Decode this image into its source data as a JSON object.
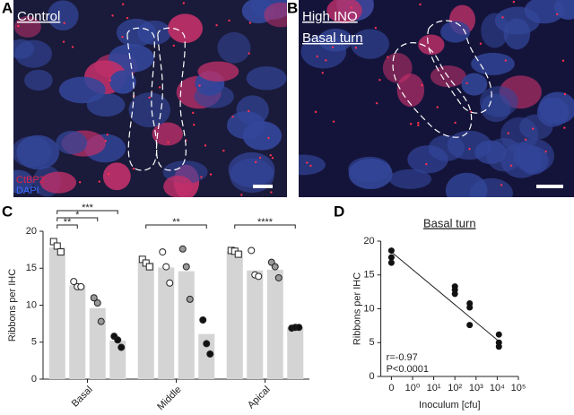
{
  "panels": {
    "A": {
      "letter": "A",
      "labels": [
        "Control"
      ],
      "stains": [
        "CtBP2",
        "DAPI"
      ]
    },
    "B": {
      "letter": "B",
      "labels": [
        "High INO",
        "Basal turn"
      ]
    }
  },
  "chart_data": [
    {
      "letter": "C",
      "type": "bar",
      "ylabel": "Ribbons per IHC",
      "categories": [
        "Basal",
        "Middle",
        "Apical"
      ],
      "ylim": [
        0,
        20
      ],
      "yticks": [
        0,
        5,
        10,
        15,
        20
      ],
      "bar_color": "#d4d4d4",
      "series": [
        {
          "marker": "square",
          "color": "#ffffff",
          "values": [
            17.8,
            15.8,
            17.3
          ],
          "points": [
            [
              18.6,
              18.0,
              17.2
            ],
            [
              16.2,
              15.7,
              15.2
            ],
            [
              17.4,
              17.3,
              16.9
            ]
          ]
        },
        {
          "marker": "circle",
          "color": "#ffffff",
          "values": [
            12.7,
            15.1,
            14.7
          ],
          "points": [
            [
              13.2,
              12.5,
              12.5
            ],
            [
              17.2,
              15.2,
              13.0
            ],
            [
              17.4,
              14.1,
              13.9
            ]
          ]
        },
        {
          "marker": "circle",
          "color": "#999999",
          "values": [
            9.6,
            14.6,
            14.8
          ],
          "points": [
            [
              11.0,
              10.3,
              7.8
            ],
            [
              17.6,
              15.2,
              10.8
            ],
            [
              15.8,
              15.2,
              13.7
            ]
          ]
        },
        {
          "marker": "circle",
          "color": "#111111",
          "values": [
            5.2,
            6.1,
            7.0
          ],
          "points": [
            [
              5.8,
              5.3,
              4.3
            ],
            [
              8.0,
              4.8,
              3.4
            ],
            [
              6.9,
              7.0,
              7.0
            ]
          ]
        }
      ],
      "significance": [
        {
          "category": 0,
          "from": 0,
          "to": 1,
          "label": "**"
        },
        {
          "category": 0,
          "from": 0,
          "to": 2,
          "label": "*"
        },
        {
          "category": 0,
          "from": 0,
          "to": 3,
          "label": "***"
        },
        {
          "category": 1,
          "from": 0,
          "to": 3,
          "label": "**"
        },
        {
          "category": 2,
          "from": 0,
          "to": 3,
          "label": "****"
        }
      ]
    },
    {
      "letter": "D",
      "type": "scatter",
      "title": "Basal turn",
      "xlabel": "Inoculum [cfu]",
      "ylabel": "Ribbons per IHC",
      "xscale": "log",
      "xlim": [
        0,
        100000
      ],
      "xticks": [
        0,
        {
          "value": 1,
          "label": "10⁰"
        },
        {
          "value": 10,
          "label": "10¹"
        },
        {
          "value": 100,
          "label": "10²"
        },
        {
          "value": 1000,
          "label": "10³"
        },
        {
          "value": 10000,
          "label": "10⁴"
        },
        {
          "value": 100000,
          "label": "10⁵"
        }
      ],
      "ylim": [
        0,
        20
      ],
      "yticks": [
        0,
        5,
        10,
        15,
        20
      ],
      "series": [
        {
          "color": "#111111",
          "x": [
            0,
            0,
            0,
            100,
            100,
            100,
            500,
            500,
            500,
            12000,
            12000,
            12000
          ],
          "values": [
            18.6,
            17.6,
            16.8,
            13.3,
            12.8,
            12.2,
            10.8,
            10.2,
            7.6,
            6.2,
            5.0,
            4.4
          ]
        }
      ],
      "fit_line": {
        "x": [
          0,
          12000
        ],
        "y": [
          18.4,
          5.2
        ]
      },
      "annotations": [
        "r=-0.97",
        "P<0.0001"
      ]
    }
  ]
}
